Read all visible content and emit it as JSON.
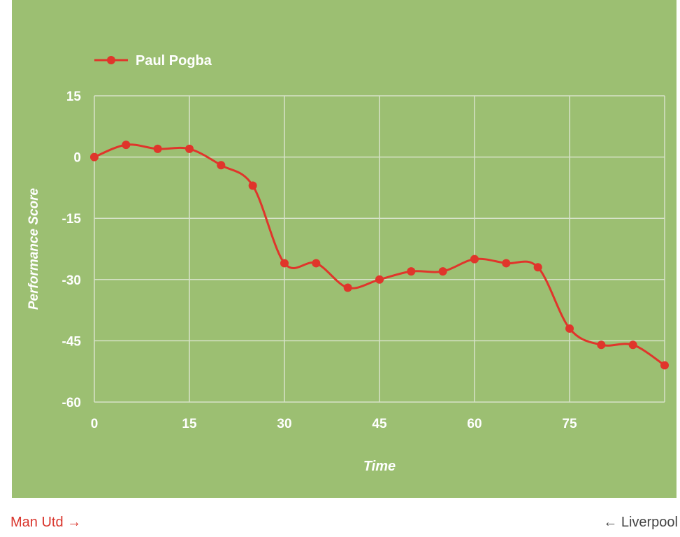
{
  "chart_data": {
    "type": "line",
    "title": "",
    "xlabel": "Time",
    "ylabel": "Performance Score",
    "xlim": [
      0,
      90
    ],
    "ylim": [
      -60,
      15
    ],
    "x_ticks": [
      "0",
      "15",
      "30",
      "45",
      "60",
      "75"
    ],
    "y_ticks": [
      "15",
      "0",
      "-15",
      "-30",
      "-45",
      "-60"
    ],
    "grid": true,
    "legend_position": "top-left",
    "series": [
      {
        "name": "Paul Pogba",
        "color": "#e0352b",
        "x": [
          0,
          5,
          10,
          15,
          20,
          25,
          30,
          35,
          40,
          45,
          50,
          55,
          60,
          65,
          70,
          75,
          80,
          85,
          90
        ],
        "values": [
          0,
          3,
          2,
          2,
          -2,
          -7,
          -26,
          -26,
          -32,
          -30,
          -28,
          -28,
          -25,
          -26,
          -27,
          -42,
          -46,
          -46,
          -51
        ]
      }
    ]
  },
  "nav": {
    "prev_label": "Man Utd",
    "prev_arrow": "→",
    "next_label": "Liverpool",
    "next_arrow": "←"
  },
  "colors": {
    "background": "#9cbf72",
    "grid": "#d6e2c8"
  }
}
